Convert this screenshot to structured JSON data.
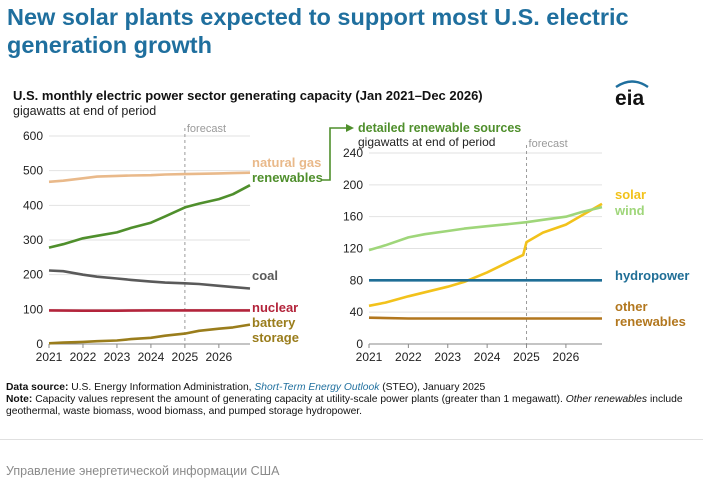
{
  "headline": "New solar plants expected to support most U.S. electric generation growth",
  "chart_title": "U.S. monthly electric power sector generating capacity (Jan 2021–Dec 2026)",
  "chart_unit": "gigawatts at end of period",
  "logo_text": "eia",
  "colors": {
    "natural_gas": "#e9b98a",
    "renewables": "#4f8f2c",
    "coal": "#5a5a5a",
    "nuclear": "#b3243b",
    "battery": "#9a7d1c",
    "solar": "#f2c21b",
    "wind": "#9fd67a",
    "hydropower": "#1f6e96",
    "other": "#b2771e",
    "headline": "#1f6f9e"
  },
  "chart_data": [
    {
      "type": "line",
      "title": "",
      "forecast_label": "forecast",
      "forecast_start": "2025-01",
      "x_range": [
        "2021-01",
        "2026-12"
      ],
      "x_ticks": [
        "2021",
        "2022",
        "2023",
        "2024",
        "2025",
        "2026"
      ],
      "ylim": [
        0,
        600
      ],
      "y_ticks": [
        0,
        100,
        200,
        300,
        400,
        500,
        600
      ],
      "grid": true,
      "series": [
        {
          "key": "natural_gas",
          "name": "natural gas",
          "points": [
            [
              "2021-01",
              468
            ],
            [
              "2021-06",
              471
            ],
            [
              "2022-01",
              478
            ],
            [
              "2022-06",
              483
            ],
            [
              "2023-01",
              485
            ],
            [
              "2023-06",
              486
            ],
            [
              "2024-01",
              487
            ],
            [
              "2024-06",
              489
            ],
            [
              "2025-01",
              490
            ],
            [
              "2025-06",
              491
            ],
            [
              "2026-01",
              492
            ],
            [
              "2026-06",
              493
            ],
            [
              "2026-12",
              494
            ]
          ]
        },
        {
          "key": "renewables",
          "name": "renewables",
          "points": [
            [
              "2021-01",
              278
            ],
            [
              "2021-06",
              288
            ],
            [
              "2022-01",
              305
            ],
            [
              "2022-06",
              312
            ],
            [
              "2023-01",
              322
            ],
            [
              "2023-06",
              335
            ],
            [
              "2024-01",
              350
            ],
            [
              "2024-06",
              368
            ],
            [
              "2025-01",
              394
            ],
            [
              "2025-06",
              405
            ],
            [
              "2026-01",
              418
            ],
            [
              "2026-06",
              432
            ],
            [
              "2026-12",
              458
            ]
          ]
        },
        {
          "key": "coal",
          "name": "coal",
          "points": [
            [
              "2021-01",
              212
            ],
            [
              "2021-06",
              210
            ],
            [
              "2022-01",
              200
            ],
            [
              "2022-06",
              194
            ],
            [
              "2023-01",
              189
            ],
            [
              "2023-06",
              185
            ],
            [
              "2024-01",
              180
            ],
            [
              "2024-06",
              177
            ],
            [
              "2025-01",
              175
            ],
            [
              "2025-06",
              173
            ],
            [
              "2026-01",
              168
            ],
            [
              "2026-06",
              164
            ],
            [
              "2026-12",
              160
            ]
          ]
        },
        {
          "key": "nuclear",
          "name": "nuclear",
          "points": [
            [
              "2021-01",
              97
            ],
            [
              "2022-01",
              96
            ],
            [
              "2023-01",
              96
            ],
            [
              "2024-01",
              97
            ],
            [
              "2025-01",
              97
            ],
            [
              "2026-01",
              97
            ],
            [
              "2026-12",
              97
            ]
          ]
        },
        {
          "key": "battery",
          "name": "battery storage",
          "points": [
            [
              "2021-01",
              2
            ],
            [
              "2021-06",
              4
            ],
            [
              "2022-01",
              6
            ],
            [
              "2022-06",
              8
            ],
            [
              "2023-01",
              10
            ],
            [
              "2023-06",
              14
            ],
            [
              "2024-01",
              18
            ],
            [
              "2024-06",
              24
            ],
            [
              "2025-01",
              30
            ],
            [
              "2025-06",
              38
            ],
            [
              "2026-01",
              44
            ],
            [
              "2026-06",
              48
            ],
            [
              "2026-12",
              56
            ]
          ]
        }
      ]
    },
    {
      "type": "line",
      "title": "detailed renewable sources",
      "unit": "gigawatts at end of period",
      "forecast_label": "forecast",
      "forecast_start": "2025-01",
      "x_range": [
        "2021-01",
        "2026-12"
      ],
      "x_ticks": [
        "2021",
        "2022",
        "2023",
        "2024",
        "2025",
        "2026"
      ],
      "ylim": [
        0,
        240
      ],
      "y_ticks": [
        0,
        40,
        80,
        120,
        160,
        200,
        240
      ],
      "grid": true,
      "series": [
        {
          "key": "solar",
          "name": "solar",
          "points": [
            [
              "2021-01",
              48
            ],
            [
              "2021-06",
              52
            ],
            [
              "2022-01",
              60
            ],
            [
              "2022-06",
              65
            ],
            [
              "2023-01",
              72
            ],
            [
              "2023-06",
              78
            ],
            [
              "2024-01",
              90
            ],
            [
              "2024-06",
              100
            ],
            [
              "2024-12",
              112
            ],
            [
              "2025-01",
              128
            ],
            [
              "2025-06",
              140
            ],
            [
              "2026-01",
              150
            ],
            [
              "2026-06",
              162
            ],
            [
              "2026-12",
              176
            ]
          ]
        },
        {
          "key": "wind",
          "name": "wind",
          "points": [
            [
              "2021-01",
              118
            ],
            [
              "2021-06",
              124
            ],
            [
              "2022-01",
              134
            ],
            [
              "2022-06",
              138
            ],
            [
              "2023-01",
              142
            ],
            [
              "2023-06",
              145
            ],
            [
              "2024-01",
              148
            ],
            [
              "2024-06",
              150
            ],
            [
              "2025-01",
              153
            ],
            [
              "2025-06",
              156
            ],
            [
              "2026-01",
              160
            ],
            [
              "2026-06",
              166
            ],
            [
              "2026-12",
              172
            ]
          ]
        },
        {
          "key": "hydropower",
          "name": "hydropower",
          "points": [
            [
              "2021-01",
              80
            ],
            [
              "2023-01",
              80
            ],
            [
              "2025-01",
              80
            ],
            [
              "2026-12",
              80
            ]
          ]
        },
        {
          "key": "other",
          "name": "other renewables",
          "points": [
            [
              "2021-01",
              33
            ],
            [
              "2022-01",
              32
            ],
            [
              "2024-01",
              32
            ],
            [
              "2026-12",
              32
            ]
          ]
        }
      ]
    }
  ],
  "notes": {
    "source_label": "Data source:",
    "source_pre": "U.S. Energy Information Administration,",
    "source_link": "Short-Term Energy Outlook",
    "source_post": "(STEO), January 2025",
    "note_label": "Note:",
    "note_pre": "Capacity values represent the amount of generating capacity at utility-scale power plants (greater than 1 megawatt).",
    "note_italic": "Other renewables",
    "note_post": "include geothermal, waste biomass, wood biomass, and pumped storage hydropower."
  },
  "caption": "Управление энергетической информации США"
}
